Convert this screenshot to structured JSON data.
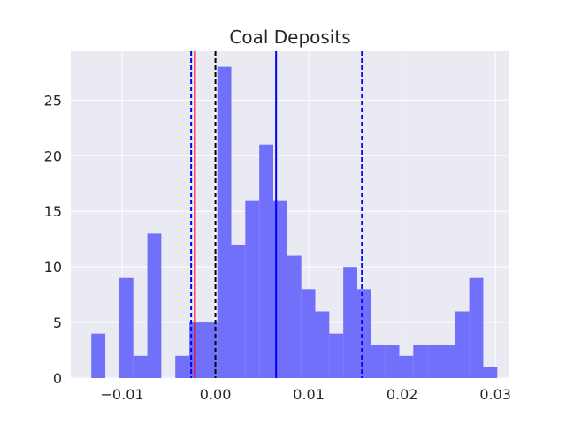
{
  "chart_data": {
    "type": "bar",
    "title": "Coal Deposits",
    "xlabel": "",
    "ylabel": "",
    "xlim": [
      -0.0155,
      0.0315
    ],
    "ylim": [
      0,
      29.4
    ],
    "grid": true,
    "bin_width": 0.0015,
    "bins": [
      {
        "x0": -0.0133,
        "count": 4
      },
      {
        "x0": -0.0118,
        "count": 0
      },
      {
        "x0": -0.0103,
        "count": 9
      },
      {
        "x0": -0.0088,
        "count": 2
      },
      {
        "x0": -0.0073,
        "count": 13
      },
      {
        "x0": -0.0058,
        "count": 0
      },
      {
        "x0": -0.0043,
        "count": 2
      },
      {
        "x0": -0.0028,
        "count": 5
      },
      {
        "x0": -0.0013,
        "count": 5
      },
      {
        "x0": 0.0002,
        "count": 28
      },
      {
        "x0": 0.0017,
        "count": 12
      },
      {
        "x0": 0.0032,
        "count": 16
      },
      {
        "x0": 0.0047,
        "count": 21
      },
      {
        "x0": 0.0062,
        "count": 16
      },
      {
        "x0": 0.0077,
        "count": 11
      },
      {
        "x0": 0.0092,
        "count": 8
      },
      {
        "x0": 0.0107,
        "count": 6
      },
      {
        "x0": 0.0122,
        "count": 4
      },
      {
        "x0": 0.0137,
        "count": 10
      },
      {
        "x0": 0.0152,
        "count": 8
      },
      {
        "x0": 0.0167,
        "count": 3
      },
      {
        "x0": 0.0182,
        "count": 3
      },
      {
        "x0": 0.0197,
        "count": 2
      },
      {
        "x0": 0.0212,
        "count": 3
      },
      {
        "x0": 0.0227,
        "count": 3
      },
      {
        "x0": 0.0242,
        "count": 3
      },
      {
        "x0": 0.0257,
        "count": 6
      },
      {
        "x0": 0.0272,
        "count": 9
      },
      {
        "x0": 0.0287,
        "count": 1
      }
    ],
    "bar_color": "#7070fa",
    "vertical_lines": [
      {
        "x": -0.0026,
        "color": "#0000ff",
        "style": "dashed"
      },
      {
        "x": -0.0022,
        "color": "#ff0000",
        "style": "solid"
      },
      {
        "x": 0.0,
        "color": "#000000",
        "style": "dashed"
      },
      {
        "x": 0.0065,
        "color": "#0000ff",
        "style": "solid"
      },
      {
        "x": 0.0157,
        "color": "#0000ff",
        "style": "dashed"
      }
    ],
    "x_ticks": [
      {
        "value": -0.01,
        "label": "−0.01"
      },
      {
        "value": 0.0,
        "label": "0.00"
      },
      {
        "value": 0.01,
        "label": "0.01"
      },
      {
        "value": 0.02,
        "label": "0.02"
      },
      {
        "value": 0.03,
        "label": "0.03"
      }
    ],
    "y_ticks": [
      {
        "value": 0,
        "label": "0"
      },
      {
        "value": 5,
        "label": "5"
      },
      {
        "value": 10,
        "label": "10"
      },
      {
        "value": 15,
        "label": "15"
      },
      {
        "value": 20,
        "label": "20"
      },
      {
        "value": 25,
        "label": "25"
      }
    ],
    "colors": {
      "plot_background": "#eaeaf2",
      "grid": "#ffffff",
      "text": "#262626"
    }
  }
}
